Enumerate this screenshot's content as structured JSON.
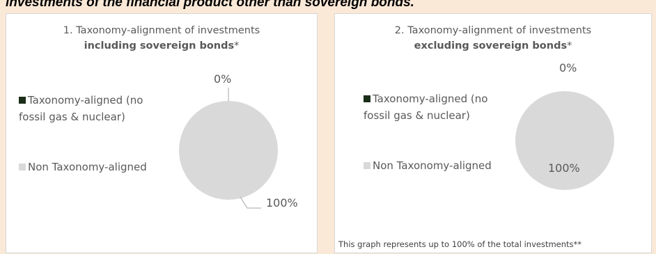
{
  "heading": "investments of the financial product other than sovereign bonds.",
  "colors": {
    "aligned": "#1a2e1a",
    "non_aligned": "#d9d9d9",
    "background": "#fbe9d8"
  },
  "chart_data": [
    {
      "type": "pie",
      "title_line1": "1. Taxonomy-alignment of investments",
      "title_line2_bold": "including sovereign bonds",
      "title_line2_suffix": "*",
      "legend": [
        {
          "label_line1": "Taxonomy-aligned (no",
          "label_line2": "fossil gas & nuclear)",
          "color": "#1a2e1a"
        },
        {
          "label_line1": "Non Taxonomy-aligned",
          "label_line2": "",
          "color": "#d9d9d9"
        }
      ],
      "slices": [
        {
          "name": "Taxonomy-aligned (no fossil gas & nuclear)",
          "value": 0,
          "label": "0%"
        },
        {
          "name": "Non Taxonomy-aligned",
          "value": 100,
          "label": "100%"
        }
      ]
    },
    {
      "type": "pie",
      "title_line1": "2. Taxonomy-alignment of investments",
      "title_line2_bold": "excluding sovereign bonds",
      "title_line2_suffix": "*",
      "legend": [
        {
          "label_line1": "Taxonomy-aligned (no",
          "label_line2": "fossil gas & nuclear)",
          "color": "#1a2e1a"
        },
        {
          "label_line1": "Non Taxonomy-aligned",
          "label_line2": "",
          "color": "#d9d9d9"
        }
      ],
      "slices": [
        {
          "name": "Taxonomy-aligned (no fossil gas & nuclear)",
          "value": 0,
          "label": "0%"
        },
        {
          "name": "Non Taxonomy-aligned",
          "value": 100,
          "label": "100%"
        }
      ],
      "footnote": "This graph represents up to 100% of the total investments**"
    }
  ]
}
